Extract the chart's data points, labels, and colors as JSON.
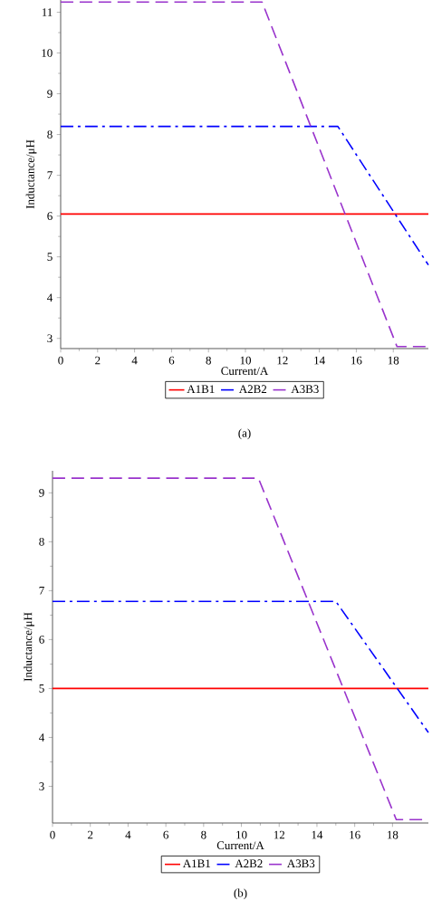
{
  "chart_data": [
    {
      "type": "line",
      "xlabel": "Current/A",
      "ylabel": "Inductance/μH",
      "annotations": [
        "(a)"
      ],
      "legend": "bottom",
      "xlim": [
        0,
        19.9
      ],
      "ylim": [
        2.75,
        11.3
      ],
      "xticks": [
        0,
        2,
        4,
        6,
        8,
        10,
        12,
        14,
        16,
        18
      ],
      "yticks": [
        3,
        4,
        5,
        6,
        7,
        8,
        9,
        10,
        11
      ],
      "series": [
        {
          "name": "A1B1",
          "color": "#ff0000",
          "line_style": "solid",
          "x": [
            0,
            19.9
          ],
          "values": [
            6.05,
            6.05
          ]
        },
        {
          "name": "A2B2",
          "color": "#0000ff",
          "line_style": "dashdot",
          "x": [
            0,
            15.0,
            19.9
          ],
          "values": [
            8.2,
            8.2,
            4.8
          ]
        },
        {
          "name": "A3B3",
          "color": "#9933cc",
          "line_style": "dashed",
          "x": [
            0,
            10.9,
            18.2,
            19.9
          ],
          "values": [
            11.25,
            11.25,
            2.8,
            2.8
          ]
        }
      ]
    },
    {
      "type": "line",
      "xlabel": "Current/A",
      "ylabel": "Inductance/μH",
      "annotations": [
        "(b)"
      ],
      "legend": "bottom",
      "xlim": [
        0,
        19.9
      ],
      "ylim": [
        2.25,
        9.45
      ],
      "xticks": [
        0,
        2,
        4,
        6,
        8,
        10,
        12,
        14,
        16,
        18
      ],
      "yticks": [
        3,
        4,
        5,
        6,
        7,
        8,
        9
      ],
      "series": [
        {
          "name": "A1B1",
          "color": "#ff0000",
          "line_style": "solid",
          "x": [
            0,
            19.9
          ],
          "values": [
            5.0,
            5.0
          ]
        },
        {
          "name": "A2B2",
          "color": "#0000ff",
          "line_style": "dashdot",
          "x": [
            0,
            15.0,
            19.9
          ],
          "values": [
            6.78,
            6.78,
            4.1
          ]
        },
        {
          "name": "A3B3",
          "color": "#9933cc",
          "line_style": "dashed",
          "x": [
            0,
            10.9,
            18.2,
            19.9
          ],
          "values": [
            9.3,
            9.3,
            2.32,
            2.32
          ]
        }
      ]
    }
  ]
}
